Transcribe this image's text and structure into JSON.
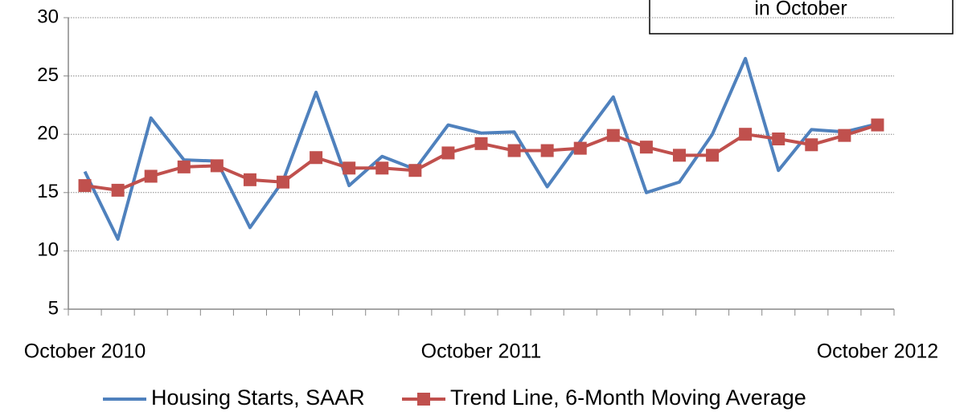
{
  "chart_data": {
    "type": "line",
    "annotation": "in October",
    "categories": [
      "October 2010",
      null,
      null,
      null,
      null,
      null,
      null,
      null,
      null,
      null,
      null,
      null,
      "October 2011",
      null,
      null,
      null,
      null,
      null,
      null,
      null,
      null,
      null,
      null,
      null,
      "October 2012"
    ],
    "series": [
      {
        "name": "Housing Starts, SAAR",
        "color": "#4f81bd",
        "marker": false,
        "values": [
          16.8,
          11.0,
          21.4,
          17.8,
          17.7,
          12.0,
          16.0,
          23.6,
          15.6,
          18.1,
          17.0,
          20.8,
          20.1,
          20.2,
          15.5,
          19.4,
          23.2,
          15.0,
          15.9,
          20.0,
          26.5,
          16.9,
          20.4,
          20.2,
          20.9
        ]
      },
      {
        "name": "Trend Line, 6-Month Moving Average",
        "color": "#c0504d",
        "marker": true,
        "values": [
          15.6,
          15.2,
          16.4,
          17.2,
          17.3,
          16.1,
          15.9,
          18.0,
          17.1,
          17.1,
          16.9,
          18.4,
          19.2,
          18.6,
          18.6,
          18.8,
          19.9,
          18.9,
          18.2,
          18.2,
          20.0,
          19.6,
          19.1,
          19.9,
          20.8
        ]
      }
    ],
    "ylim": [
      5,
      30
    ],
    "yticks": [
      5,
      10,
      15,
      20,
      25,
      30
    ],
    "grid": true
  }
}
